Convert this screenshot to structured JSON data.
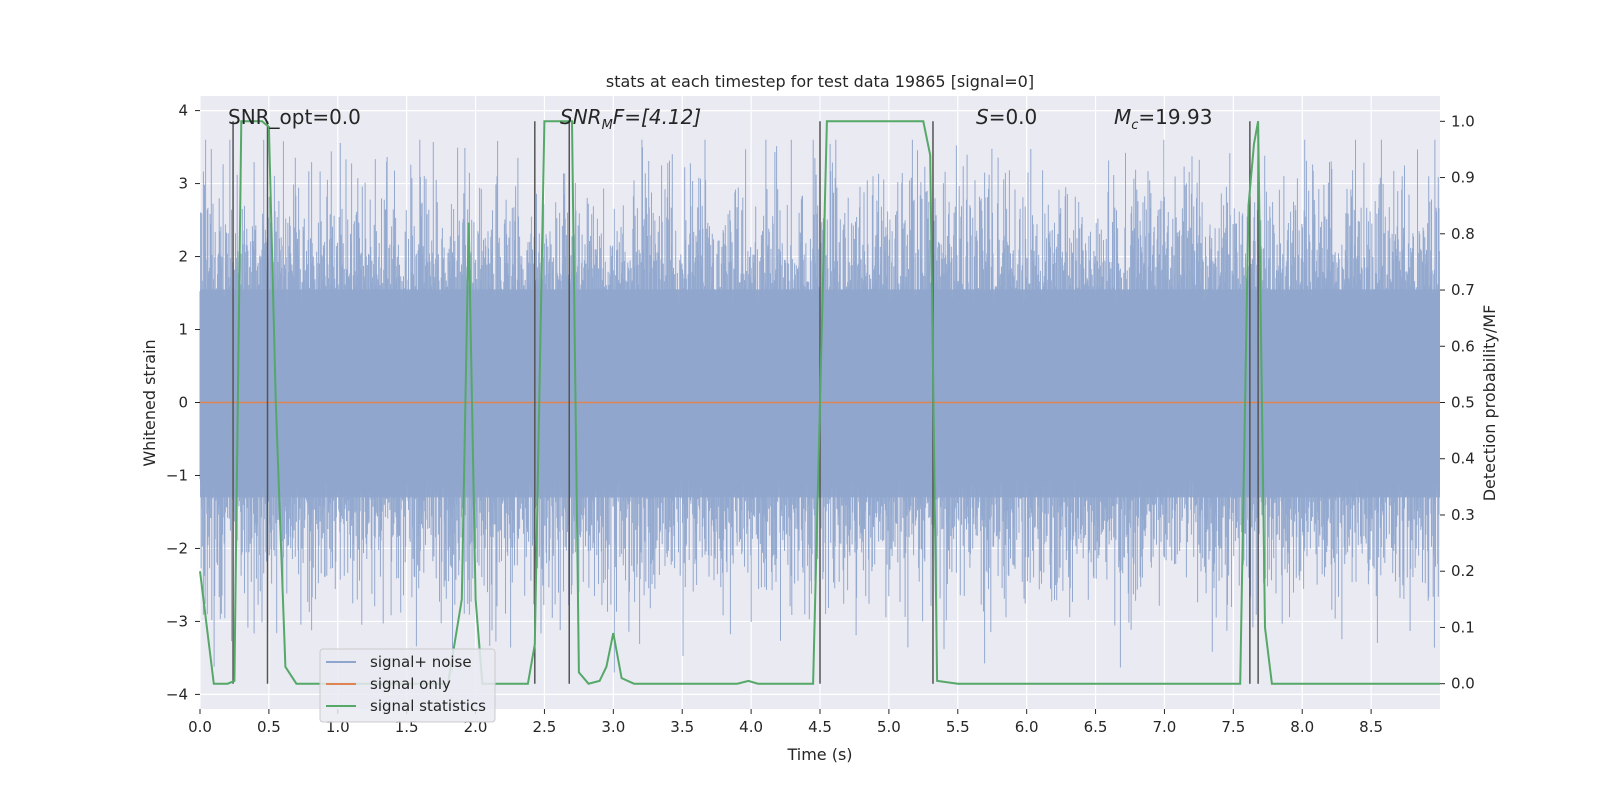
{
  "chart_data": {
    "type": "line",
    "title": "stats at each timestep for test data 19865 [signal=0]",
    "xlabel": "Time (s)",
    "ylabel": "Whitened strain",
    "ylabel_right": "Detection probability/MF",
    "xlim": [
      0,
      9
    ],
    "ylim": [
      -4.2,
      4.2
    ],
    "ylim_right": [
      -0.045,
      1.045
    ],
    "x_ticks": [
      0.0,
      0.5,
      1.0,
      1.5,
      2.0,
      2.5,
      3.0,
      3.5,
      4.0,
      4.5,
      5.0,
      5.5,
      6.0,
      6.5,
      7.0,
      7.5,
      8.0,
      8.5
    ],
    "x_tick_labels": [
      "0.0",
      "0.5",
      "1.0",
      "1.5",
      "2.0",
      "2.5",
      "3.0",
      "3.5",
      "4.0",
      "4.5",
      "5.0",
      "5.5",
      "6.0",
      "6.5",
      "7.0",
      "7.5",
      "8.0",
      "8.5"
    ],
    "y_ticks": [
      -4,
      -3,
      -2,
      -1,
      0,
      1,
      2,
      3,
      4
    ],
    "y_tick_labels": [
      "−4",
      "−3",
      "−2",
      "−1",
      "0",
      "1",
      "2",
      "3",
      "4"
    ],
    "y2_ticks": [
      0.0,
      0.1,
      0.2,
      0.3,
      0.4,
      0.5,
      0.6,
      0.7,
      0.8,
      0.9,
      1.0
    ],
    "y2_tick_labels": [
      "0.0",
      "0.1",
      "0.2",
      "0.3",
      "0.4",
      "0.5",
      "0.6",
      "0.7",
      "0.8",
      "0.9",
      "1.0"
    ],
    "annotations": {
      "snr_opt": "SNR_opt=0.0",
      "snr_mf_main": "SNR",
      "snr_mf_sub": "M",
      "snr_mf_rest": "F=[4.12]",
      "s_main": "S",
      "s_rest": "=0.0",
      "mc_main": "M",
      "mc_sub": "c",
      "mc_rest": "=19.93"
    },
    "legend": {
      "location": "lower-left",
      "entries": [
        "signal+ noise",
        "signal only",
        "signal statistics"
      ]
    },
    "series": [
      {
        "name": "signal+ noise",
        "axis": "left",
        "color": "#8fa5cc",
        "description": "noisy whitened strain, roughly within -3.7 to 3.6, dense band between -1.4 and 1.7"
      },
      {
        "name": "signal only",
        "axis": "left",
        "color": "#dd8452",
        "x": [
          0,
          9
        ],
        "y": [
          0,
          0
        ]
      },
      {
        "name": "signal statistics",
        "axis": "right",
        "color": "#55a868",
        "x": [
          0.0,
          0.05,
          0.1,
          0.2,
          0.25,
          0.3,
          0.4,
          0.45,
          0.5,
          0.55,
          0.62,
          0.7,
          0.8,
          1.0,
          1.5,
          1.8,
          1.9,
          1.95,
          2.0,
          2.05,
          2.1,
          2.3,
          2.38,
          2.43,
          2.5,
          2.6,
          2.7,
          2.75,
          2.82,
          2.9,
          2.95,
          3.0,
          3.06,
          3.15,
          3.5,
          3.9,
          3.98,
          4.05,
          4.45,
          4.55,
          4.7,
          5.0,
          5.25,
          5.3,
          5.35,
          5.5,
          6.0,
          7.0,
          7.55,
          7.61,
          7.65,
          7.68,
          7.73,
          7.78,
          7.9,
          8.5,
          9.0
        ],
        "y": [
          0.2,
          0.1,
          0.0,
          0.0,
          0.005,
          1.0,
          1.0,
          1.0,
          0.99,
          0.5,
          0.03,
          0.0,
          0.0,
          0.0,
          0.0,
          0.0,
          0.15,
          0.82,
          0.15,
          0.0,
          0.0,
          0.0,
          0.0,
          0.07,
          1.0,
          1.0,
          1.0,
          0.02,
          0.0,
          0.005,
          0.03,
          0.09,
          0.01,
          0.0,
          0.0,
          0.0,
          0.005,
          0.0,
          0.0,
          1.0,
          1.0,
          1.0,
          1.0,
          0.94,
          0.005,
          0.0,
          0.0,
          0.0,
          0.0,
          0.85,
          0.96,
          1.0,
          0.1,
          0.0,
          0.0,
          0.0,
          0.0
        ]
      }
    ],
    "marker_lines": {
      "axis": "right",
      "color": "#555555",
      "from": 0.0,
      "to": 1.0,
      "x": [
        0.24,
        0.49,
        2.43,
        2.68,
        4.5,
        5.32,
        7.62,
        7.68
      ]
    }
  }
}
